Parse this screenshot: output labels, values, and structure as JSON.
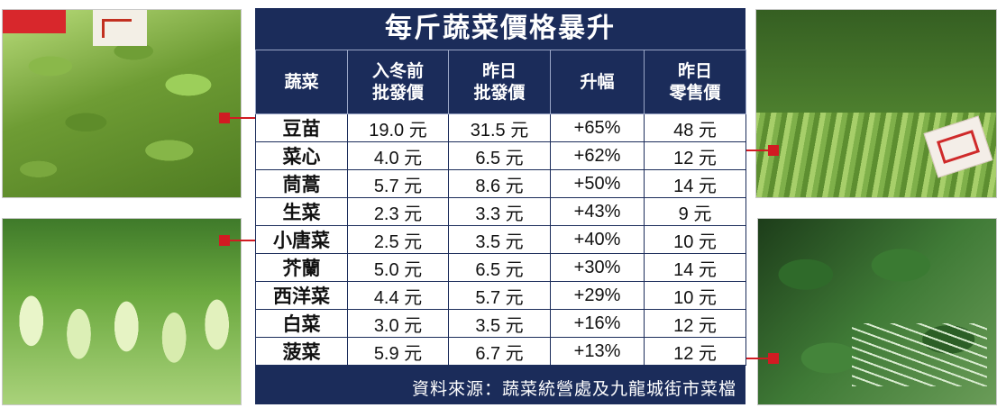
{
  "title": "每斤蔬菜價格暴升",
  "headers": {
    "vegetable": "蔬菜",
    "pre_winter": [
      "入冬前",
      "批發價"
    ],
    "yesterday_wholesale": [
      "昨日",
      "批發價"
    ],
    "increase": "升幅",
    "yesterday_retail": [
      "昨日",
      "零售價"
    ]
  },
  "rows": [
    {
      "name": "豆苗",
      "pre": "19.0 元",
      "wholesale": "31.5 元",
      "rise": "+65%",
      "retail": "48 元"
    },
    {
      "name": "菜心",
      "pre": "4.0 元",
      "wholesale": "6.5 元",
      "rise": "+62%",
      "retail": "12 元"
    },
    {
      "name": "茼蒿",
      "pre": "5.7 元",
      "wholesale": "8.6 元",
      "rise": "+50%",
      "retail": "14 元"
    },
    {
      "name": "生菜",
      "pre": "2.3 元",
      "wholesale": "3.3 元",
      "rise": "+43%",
      "retail": "9 元"
    },
    {
      "name": "小唐菜",
      "pre": "2.5 元",
      "wholesale": "3.5 元",
      "rise": "+40%",
      "retail": "10 元"
    },
    {
      "name": "芥蘭",
      "pre": "5.0 元",
      "wholesale": "6.5 元",
      "rise": "+30%",
      "retail": "14 元"
    },
    {
      "name": "西洋菜",
      "pre": "4.4 元",
      "wholesale": "5.7 元",
      "rise": "+29%",
      "retail": "10 元"
    },
    {
      "name": "白菜",
      "pre": "3.0 元",
      "wholesale": "3.5 元",
      "rise": "+16%",
      "retail": "12 元"
    },
    {
      "name": "菠菜",
      "pre": "5.9 元",
      "wholesale": "6.7 元",
      "rise": "+13%",
      "retail": "12 元"
    }
  ],
  "source": "資料來源：蔬菜統營處及九龍城街市菜檔",
  "colors": {
    "panel": "#1b2c5a",
    "accent_red": "#d11b22"
  }
}
